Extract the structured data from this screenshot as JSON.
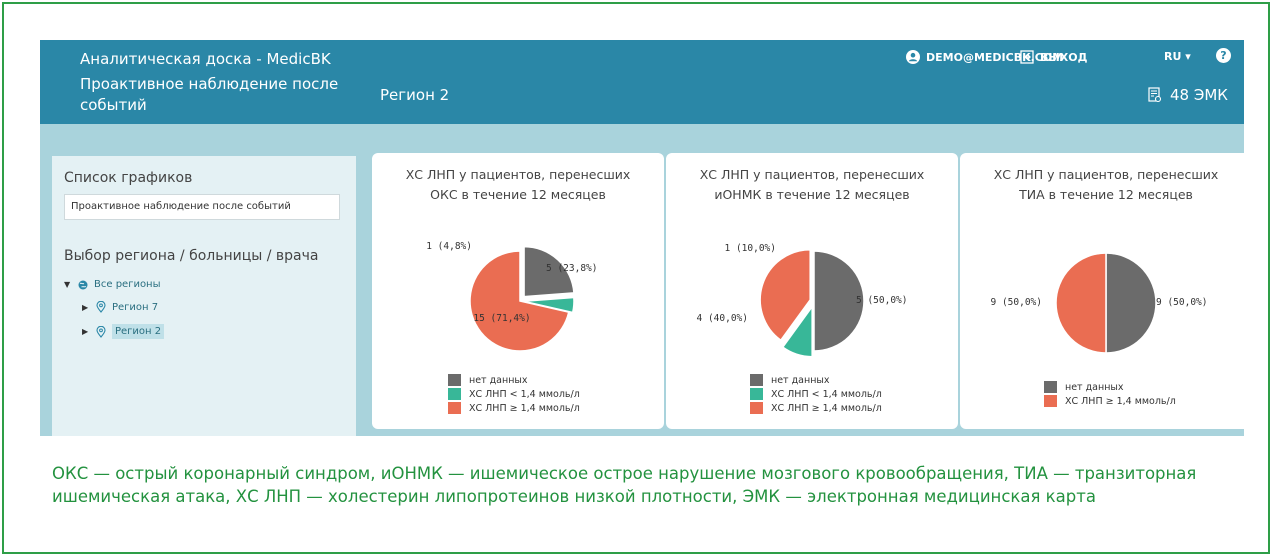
{
  "header": {
    "app_title": "Аналитическая доска - MedicBK",
    "subtitle": "Проактивное наблюдение после событий",
    "region": "Регион 2",
    "user_email": "DEMO@MEDICBK.COM",
    "logout_label": "ВЫХОД",
    "language": "RU",
    "emk_count": "48 ЭМК"
  },
  "sidebar": {
    "charts_list_label": "Список графиков",
    "charts_list_value": "Проактивное наблюдение после событий",
    "selection_label": "Выбор региона / больницы / врача",
    "tree": [
      {
        "label": "Все регионы",
        "level": 0,
        "expanded": true,
        "icon": "globe-icon",
        "selected": false
      },
      {
        "label": "Регион 7",
        "level": 1,
        "expanded": false,
        "icon": "location-pin-icon",
        "selected": false
      },
      {
        "label": "Регион 2",
        "level": 1,
        "expanded": false,
        "icon": "location-pin-icon",
        "selected": true
      }
    ]
  },
  "colors": {
    "no_data": "#6b6b6b",
    "low": "#38b798",
    "high": "#ea6d52",
    "header": "#2a87a7",
    "background": "#a9d3dc"
  },
  "legend_labels": {
    "no_data": "нет данных",
    "low": "ХС ЛНП < 1,4 ммоль/л",
    "high": "ХС ЛНП ≥ 1,4 ммоль/л"
  },
  "chart_data": [
    {
      "type": "pie",
      "title": "ХС ЛНП у пациентов, перенесших ОКС в течение 12 месяцев",
      "title_line1": "ХС ЛНП у пациентов, перенесших",
      "title_line2": "ОКС в течение 12 месяцев",
      "slices": [
        {
          "category": "нет данных",
          "value": 5,
          "label": "5 (23,8%)"
        },
        {
          "category": "ХС ЛНП < 1,4 ммоль/л",
          "value": 1,
          "label": "1 (4,8%)"
        },
        {
          "category": "ХС ЛНП ≥ 1,4 ммоль/л",
          "value": 15,
          "label": "15 (71,4%)"
        }
      ],
      "legend": [
        "нет данных",
        "ХС ЛНП < 1,4 ммоль/л",
        "ХС ЛНП ≥ 1,4 ммоль/л"
      ]
    },
    {
      "type": "pie",
      "title": "ХС ЛНП у пациентов, перенесших иОНМК в течение 12 месяцев",
      "title_line1": "ХС ЛНП у пациентов, перенесших",
      "title_line2": "иОНМК в течение 12 месяцев",
      "slices": [
        {
          "category": "нет данных",
          "value": 5,
          "label": "5 (50,0%)"
        },
        {
          "category": "ХС ЛНП < 1,4 ммоль/л",
          "value": 1,
          "label": "1 (10,0%)"
        },
        {
          "category": "ХС ЛНП ≥ 1,4 ммоль/л",
          "value": 4,
          "label": "4 (40,0%)"
        }
      ],
      "legend": [
        "нет данных",
        "ХС ЛНП < 1,4 ммоль/л",
        "ХС ЛНП ≥ 1,4 ммоль/л"
      ]
    },
    {
      "type": "pie",
      "title": "ХС ЛНП у пациентов, перенесших ТИА в течение 12 месяцев",
      "title_line1": "ХС ЛНП у пациентов, перенесших",
      "title_line2": "ТИА в течение 12 месяцев",
      "slices": [
        {
          "category": "нет данных",
          "value": 9,
          "label": "9 (50,0%)"
        },
        {
          "category": "ХС ЛНП ≥ 1,4 ммоль/л",
          "value": 9,
          "label": "9 (50,0%)"
        }
      ],
      "legend": [
        "нет данных",
        "ХС ЛНП ≥ 1,4 ммоль/л"
      ]
    }
  ],
  "caption": "ОКС — острый коронарный синдром, иОНМК — ишемическое острое нарушение мозгового кровообращения, ТИА — транзиторная ишемическая атака, ХС ЛНП — холестерин липопротеинов низкой плотности, ЭМК — электронная медицинская карта"
}
